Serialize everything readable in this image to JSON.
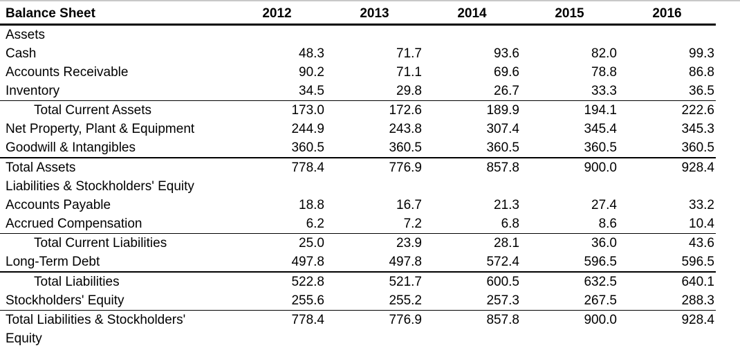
{
  "colors": {
    "text": "#000000",
    "rule_line": "#000000",
    "top_window_rule": "#c8c8c8",
    "background": "#ffffff"
  },
  "table": {
    "title": "Balance Sheet",
    "years": [
      "2012",
      "2013",
      "2014",
      "2015",
      "2016"
    ],
    "rows": [
      {
        "label": "Assets",
        "type": "section",
        "values": [
          "",
          "",
          "",
          "",
          ""
        ]
      },
      {
        "label": "Cash",
        "type": "item",
        "values": [
          "48.3",
          "71.7",
          "93.6",
          "82.0",
          "99.3"
        ]
      },
      {
        "label": "Accounts Receivable",
        "type": "item",
        "values": [
          "90.2",
          "71.1",
          "69.6",
          "78.8",
          "86.8"
        ]
      },
      {
        "label": "Inventory",
        "type": "item",
        "values": [
          "34.5",
          "29.8",
          "26.7",
          "33.3",
          "36.5"
        ]
      },
      {
        "label": "Total Current Assets",
        "type": "subtotal",
        "values": [
          "173.0",
          "172.6",
          "189.9",
          "194.1",
          "222.6"
        ]
      },
      {
        "label": "Net Property, Plant & Equipment",
        "type": "item",
        "values": [
          "244.9",
          "243.8",
          "307.4",
          "345.4",
          "345.3"
        ]
      },
      {
        "label": "Goodwill & Intangibles",
        "type": "item",
        "values": [
          "360.5",
          "360.5",
          "360.5",
          "360.5",
          "360.5"
        ]
      },
      {
        "label": "Total Assets",
        "type": "total",
        "values": [
          "778.4",
          "776.9",
          "857.8",
          "900.0",
          "928.4"
        ]
      },
      {
        "label": "Liabilities & Stockholders' Equity",
        "type": "section",
        "values": [
          "",
          "",
          "",
          "",
          ""
        ]
      },
      {
        "label": "Accounts Payable",
        "type": "item",
        "values": [
          "18.8",
          "16.7",
          "21.3",
          "27.4",
          "33.2"
        ]
      },
      {
        "label": "Accrued Compensation",
        "type": "item",
        "values": [
          "6.2",
          "7.2",
          "6.8",
          "8.6",
          "10.4"
        ]
      },
      {
        "label": "Total Current Liabilities",
        "type": "subtotal",
        "values": [
          "25.0",
          "23.9",
          "28.1",
          "36.0",
          "43.6"
        ]
      },
      {
        "label": "Long-Term Debt",
        "type": "item",
        "values": [
          "497.8",
          "497.8",
          "572.4",
          "596.5",
          "596.5"
        ]
      },
      {
        "label": "Total Liabilities",
        "type": "subtotal-thick",
        "values": [
          "522.8",
          "521.7",
          "600.5",
          "632.5",
          "640.1"
        ]
      },
      {
        "label": "Stockholders' Equity",
        "type": "item",
        "values": [
          "255.6",
          "255.2",
          "257.3",
          "267.5",
          "288.3"
        ]
      },
      {
        "label": "Total Liabilities & Stockholders' Equity",
        "type": "grandtotal",
        "values": [
          "778.4",
          "776.9",
          "857.8",
          "900.0",
          "928.4"
        ]
      }
    ]
  }
}
